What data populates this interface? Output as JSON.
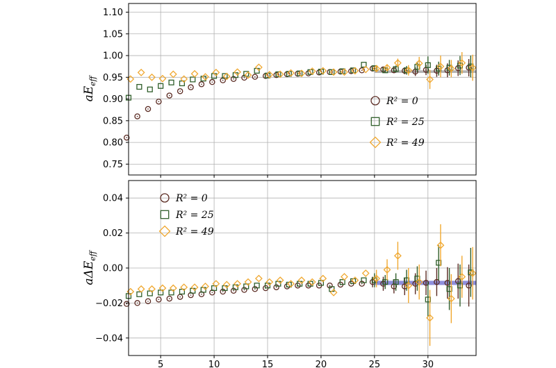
{
  "colors": {
    "r0": "#5a2a22",
    "r25": "#2f5e2a",
    "r49": "#f0a830",
    "band_top": "#777777",
    "band_bottom": "#6a6ad0"
  },
  "chart_data": [
    {
      "type": "scatter",
      "panel": "top",
      "ylabel_main": "aE",
      "ylabel_sub": "eff",
      "xlim": [
        2,
        34.5
      ],
      "ylim": [
        0.725,
        1.12
      ],
      "xticks": [
        5,
        10,
        15,
        20,
        25,
        30
      ],
      "yticks": [
        0.75,
        0.8,
        0.85,
        0.9,
        0.95,
        1.0,
        1.05,
        1.1
      ],
      "ytick_labels": [
        "0.75",
        "0.80",
        "0.85",
        "0.90",
        "0.95",
        "1.00",
        "1.05",
        "1.10"
      ],
      "legend_position": "center-right",
      "band": {
        "x": [
          25,
          34.5
        ],
        "y": 0.963,
        "half_width": 0.003
      },
      "series": [
        {
          "name": "R² = 0",
          "marker": "circle",
          "x": [
            2,
            3,
            4,
            5,
            6,
            7,
            8,
            9,
            10,
            11,
            12,
            13,
            14,
            15,
            16,
            17,
            18,
            19,
            20,
            21,
            22,
            23,
            24,
            25,
            26,
            27,
            28,
            29,
            30,
            31,
            32,
            33,
            34
          ],
          "y": [
            0.811,
            0.86,
            0.877,
            0.894,
            0.908,
            0.918,
            0.927,
            0.934,
            0.939,
            0.943,
            0.946,
            0.949,
            0.951,
            0.953,
            0.955,
            0.957,
            0.958,
            0.959,
            0.961,
            0.962,
            0.963,
            0.964,
            0.966,
            0.97,
            0.968,
            0.966,
            0.965,
            0.963,
            0.967,
            0.965,
            0.966,
            0.971,
            0.972
          ],
          "err": [
            0,
            0,
            0,
            0,
            0,
            0,
            0,
            0,
            0,
            0,
            0,
            0,
            0,
            0,
            0,
            0,
            0,
            0,
            0,
            0,
            0,
            0,
            0,
            0.003,
            0.004,
            0.006,
            0.008,
            0.01,
            0.012,
            0.014,
            0.016,
            0.018,
            0.02
          ]
        },
        {
          "name": "R² = 25",
          "marker": "square",
          "x": [
            2,
            3,
            4,
            5,
            6,
            7,
            8,
            9,
            10,
            11,
            12,
            13,
            14,
            15,
            16,
            17,
            18,
            19,
            20,
            21,
            22,
            23,
            24,
            25,
            26,
            27,
            28,
            29,
            30,
            31,
            32,
            33,
            34
          ],
          "y": [
            0.903,
            0.928,
            0.922,
            0.93,
            0.938,
            0.936,
            0.945,
            0.947,
            0.953,
            0.953,
            0.955,
            0.958,
            0.965,
            0.954,
            0.957,
            0.958,
            0.959,
            0.962,
            0.963,
            0.962,
            0.964,
            0.966,
            0.979,
            0.971,
            0.966,
            0.969,
            0.966,
            0.974,
            0.978,
            0.97,
            0.972,
            0.977,
            0.975
          ],
          "err": [
            0,
            0,
            0,
            0,
            0,
            0,
            0,
            0,
            0,
            0,
            0,
            0,
            0,
            0,
            0,
            0,
            0,
            0,
            0,
            0,
            0,
            0,
            0,
            0.005,
            0.006,
            0.008,
            0.01,
            0.012,
            0.02,
            0.016,
            0.018,
            0.022,
            0.025
          ]
        },
        {
          "name": "R² = 49",
          "marker": "diamond",
          "x": [
            2,
            3,
            4,
            5,
            6,
            7,
            8,
            9,
            10,
            11,
            12,
            13,
            14,
            15,
            16,
            17,
            18,
            19,
            20,
            21,
            22,
            23,
            24,
            25,
            26,
            27,
            28,
            29,
            30,
            31,
            32,
            33,
            34
          ],
          "y": [
            0.946,
            0.961,
            0.95,
            0.947,
            0.957,
            0.946,
            0.958,
            0.951,
            0.961,
            0.952,
            0.962,
            0.955,
            0.973,
            0.956,
            0.957,
            0.96,
            0.959,
            0.964,
            0.965,
            0.962,
            0.962,
            0.965,
            0.968,
            0.97,
            0.972,
            0.983,
            0.966,
            0.982,
            0.945,
            0.975,
            0.97,
            0.983,
            0.972
          ],
          "err": [
            0,
            0,
            0,
            0,
            0,
            0,
            0,
            0,
            0,
            0,
            0,
            0,
            0,
            0,
            0,
            0,
            0,
            0,
            0,
            0,
            0,
            0,
            0,
            0.006,
            0.008,
            0.01,
            0.012,
            0.015,
            0.022,
            0.025,
            0.02,
            0.025,
            0.03
          ]
        }
      ]
    },
    {
      "type": "scatter",
      "panel": "bottom",
      "ylabel_main": "aΔE",
      "ylabel_sub": "eff",
      "xlim": [
        2,
        34.5
      ],
      "ylim": [
        -0.05,
        0.05
      ],
      "xticks": [
        5,
        10,
        15,
        20,
        25,
        30
      ],
      "yticks": [
        -0.04,
        -0.02,
        0.0,
        0.02,
        0.04
      ],
      "ytick_labels": [
        "−0.04",
        "−0.02",
        "0.00",
        "0.02",
        "0.04"
      ],
      "legend_position": "upper-left",
      "band": {
        "x": [
          25,
          34.5
        ],
        "y": -0.0085,
        "half_width": 0.0012
      },
      "series": [
        {
          "name": "R² = 0",
          "marker": "circle",
          "x": [
            2,
            3,
            4,
            5,
            6,
            7,
            8,
            9,
            10,
            11,
            12,
            13,
            14,
            15,
            16,
            17,
            18,
            19,
            20,
            21,
            22,
            23,
            24,
            25,
            26,
            27,
            28,
            29,
            30,
            31,
            32,
            33,
            34
          ],
          "y": [
            -0.0205,
            -0.02,
            -0.019,
            -0.018,
            -0.0175,
            -0.0165,
            -0.0155,
            -0.015,
            -0.014,
            -0.0135,
            -0.013,
            -0.0125,
            -0.012,
            -0.0115,
            -0.011,
            -0.0105,
            -0.01,
            -0.01,
            -0.01,
            -0.01,
            -0.0095,
            -0.009,
            -0.009,
            -0.008,
            -0.009,
            -0.0105,
            -0.0105,
            -0.009,
            -0.0085,
            -0.008,
            -0.0085,
            -0.0075,
            -0.01
          ],
          "err": [
            0,
            0,
            0,
            0,
            0,
            0,
            0,
            0,
            0,
            0,
            0,
            0,
            0,
            0,
            0,
            0,
            0,
            0,
            0,
            0,
            0,
            0,
            0,
            0.003,
            0.004,
            0.004,
            0.005,
            0.006,
            0.007,
            0.008,
            0.009,
            0.01,
            0.012
          ]
        },
        {
          "name": "R² = 25",
          "marker": "square",
          "x": [
            2,
            3,
            4,
            5,
            6,
            7,
            8,
            9,
            10,
            11,
            12,
            13,
            14,
            15,
            16,
            17,
            18,
            19,
            20,
            21,
            22,
            23,
            24,
            25,
            26,
            27,
            28,
            29,
            30,
            31,
            32,
            33,
            34
          ],
          "y": [
            -0.016,
            -0.015,
            -0.0145,
            -0.014,
            -0.014,
            -0.0135,
            -0.013,
            -0.0125,
            -0.0115,
            -0.0115,
            -0.011,
            -0.0105,
            -0.01,
            -0.01,
            -0.009,
            -0.0095,
            -0.009,
            -0.009,
            -0.0085,
            -0.012,
            -0.008,
            -0.0075,
            -0.007,
            -0.007,
            -0.008,
            -0.008,
            -0.007,
            -0.006,
            -0.018,
            0.003,
            -0.012,
            -0.01,
            -0.0025
          ],
          "err": [
            0,
            0,
            0,
            0,
            0,
            0,
            0,
            0,
            0,
            0,
            0,
            0,
            0,
            0,
            0,
            0,
            0,
            0,
            0,
            0,
            0,
            0,
            0,
            0.004,
            0.004,
            0.005,
            0.006,
            0.007,
            0.01,
            0.01,
            0.012,
            0.012,
            0.014
          ]
        },
        {
          "name": "R² = 49",
          "marker": "diamond",
          "x": [
            2,
            3,
            4,
            5,
            6,
            7,
            8,
            9,
            10,
            11,
            12,
            13,
            14,
            15,
            16,
            17,
            18,
            19,
            20,
            21,
            22,
            23,
            24,
            25,
            26,
            27,
            28,
            29,
            30,
            31,
            32,
            33,
            34
          ],
          "y": [
            -0.0135,
            -0.012,
            -0.012,
            -0.0115,
            -0.0115,
            -0.011,
            -0.011,
            -0.0105,
            -0.009,
            -0.0095,
            -0.009,
            -0.008,
            -0.006,
            -0.008,
            -0.007,
            -0.009,
            -0.007,
            -0.008,
            -0.006,
            -0.014,
            -0.005,
            -0.007,
            -0.003,
            -0.006,
            -0.001,
            0.007,
            -0.01,
            -0.008,
            -0.0285,
            0.013,
            -0.0175,
            -0.005,
            -0.003
          ],
          "err": [
            0,
            0,
            0,
            0,
            0,
            0,
            0,
            0,
            0,
            0,
            0,
            0,
            0,
            0,
            0,
            0,
            0,
            0,
            0,
            0,
            0,
            0,
            0,
            0.005,
            0.006,
            0.008,
            0.01,
            0.01,
            0.016,
            0.012,
            0.014,
            0.012,
            0.015
          ]
        }
      ]
    }
  ]
}
